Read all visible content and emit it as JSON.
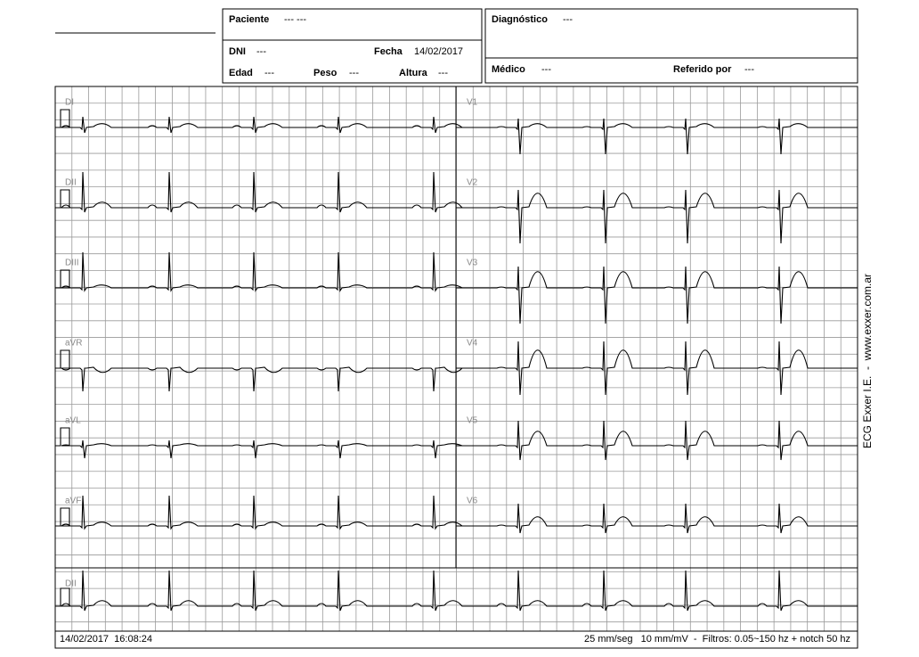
{
  "header": {
    "paciente": {
      "label": "Paciente",
      "value": "--- ---"
    },
    "diagnostico": {
      "label": "Diagnóstico",
      "value": "---"
    },
    "dni": {
      "label": "DNI",
      "value": "---"
    },
    "fecha": {
      "label": "Fecha",
      "value": "14/02/2017"
    },
    "edad": {
      "label": "Edad",
      "value": "---"
    },
    "peso": {
      "label": "Peso",
      "value": "---"
    },
    "altura": {
      "label": "Altura",
      "value": "---"
    },
    "medico": {
      "label": "Médico",
      "value": "---"
    },
    "referido": {
      "label": "Referido por",
      "value": "---"
    }
  },
  "leads_left": [
    "DI",
    "DII",
    "DIII",
    "aVR",
    "aVL",
    "aVF"
  ],
  "leads_right": [
    "V1",
    "V2",
    "V3",
    "V4",
    "V5",
    "V6"
  ],
  "rhythm_lead": "DII",
  "footer": {
    "timestamp": "14/02/2017  16:08:24",
    "settings": "25 mm/seg   10 mm/mV  -  Filtros: 0.05~150 hz + notch 50 hz"
  },
  "side_text": "ECG Exxer I.E.  -  www.exxer.com.ar"
}
